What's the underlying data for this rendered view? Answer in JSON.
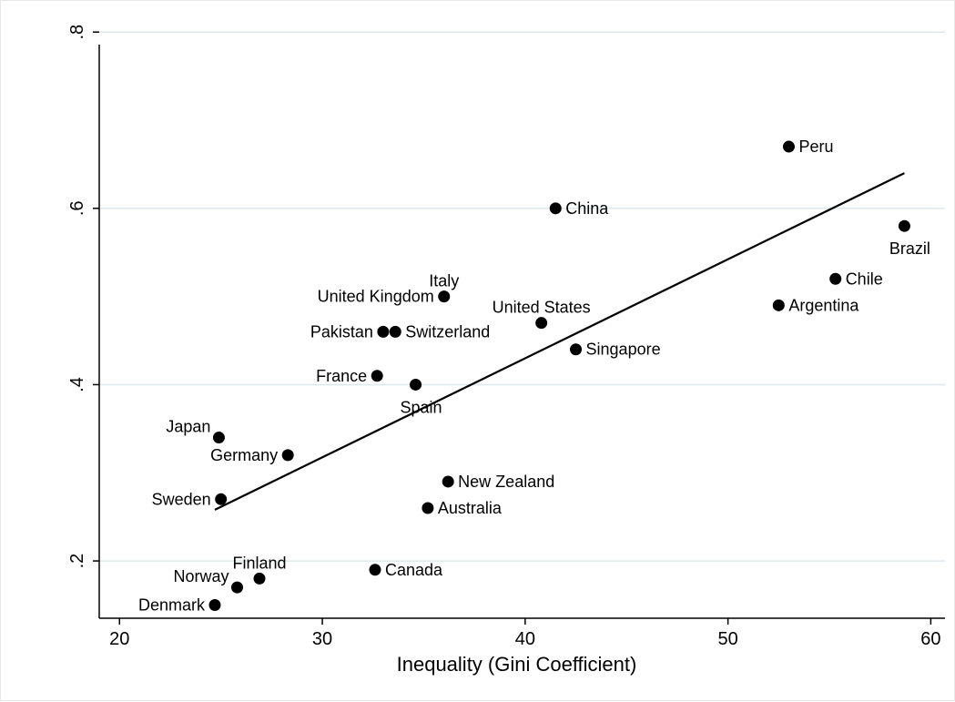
{
  "chart_data": {
    "type": "scatter",
    "xlabel": "Inequality (Gini Coefficient)",
    "ylabel": "",
    "xlim": [
      19,
      60.7
    ],
    "ylim": [
      0.135,
      0.825
    ],
    "x_ticks": [
      20,
      30,
      40,
      50,
      60
    ],
    "x_tick_labels": [
      "20",
      "30",
      "40",
      "50",
      "60"
    ],
    "y_ticks": [
      0.2,
      0.4,
      0.6,
      0.8
    ],
    "y_tick_labels": [
      ".2",
      ".4",
      ".6",
      ".8"
    ],
    "grid": "horizontal",
    "colors": {
      "points": "#000000",
      "fit_line": "#000000",
      "grid": "#dde8ec"
    },
    "points": [
      {
        "label": "Peru",
        "x": 53.0,
        "y": 0.67,
        "label_pos": "right"
      },
      {
        "label": "China",
        "x": 41.5,
        "y": 0.6,
        "label_pos": "right"
      },
      {
        "label": "Brazil",
        "x": 58.7,
        "y": 0.58,
        "label_pos": "below"
      },
      {
        "label": "Chile",
        "x": 55.3,
        "y": 0.52,
        "label_pos": "right"
      },
      {
        "label": "Italy",
        "x": 36.0,
        "y": 0.5,
        "label_pos": "above"
      },
      {
        "label": "United Kingdom",
        "x": 36.0,
        "y": 0.5,
        "label_pos": "left"
      },
      {
        "label": "Argentina",
        "x": 52.5,
        "y": 0.49,
        "label_pos": "right"
      },
      {
        "label": "United States",
        "x": 40.8,
        "y": 0.47,
        "label_pos": "above"
      },
      {
        "label": "Pakistan",
        "x": 33.0,
        "y": 0.46,
        "label_pos": "left"
      },
      {
        "label": "Switzerland",
        "x": 33.6,
        "y": 0.46,
        "label_pos": "right"
      },
      {
        "label": "Singapore",
        "x": 42.5,
        "y": 0.44,
        "label_pos": "right"
      },
      {
        "label": "France",
        "x": 32.7,
        "y": 0.41,
        "label_pos": "left"
      },
      {
        "label": "Spain",
        "x": 34.6,
        "y": 0.4,
        "label_pos": "below"
      },
      {
        "label": "Japan",
        "x": 24.9,
        "y": 0.34,
        "label_pos": "above-left"
      },
      {
        "label": "Germany",
        "x": 28.3,
        "y": 0.32,
        "label_pos": "left"
      },
      {
        "label": "New Zealand",
        "x": 36.2,
        "y": 0.29,
        "label_pos": "right"
      },
      {
        "label": "Sweden",
        "x": 25.0,
        "y": 0.27,
        "label_pos": "left"
      },
      {
        "label": "Australia",
        "x": 35.2,
        "y": 0.26,
        "label_pos": "right"
      },
      {
        "label": "Canada",
        "x": 32.6,
        "y": 0.19,
        "label_pos": "right"
      },
      {
        "label": "Finland",
        "x": 26.9,
        "y": 0.18,
        "label_pos": "above"
      },
      {
        "label": "Norway",
        "x": 25.8,
        "y": 0.17,
        "label_pos": "above-left"
      },
      {
        "label": "Denmark",
        "x": 24.7,
        "y": 0.15,
        "label_pos": "left"
      }
    ],
    "fit_line": {
      "x": [
        24.7,
        58.7
      ],
      "y": [
        0.258,
        0.64
      ]
    }
  }
}
